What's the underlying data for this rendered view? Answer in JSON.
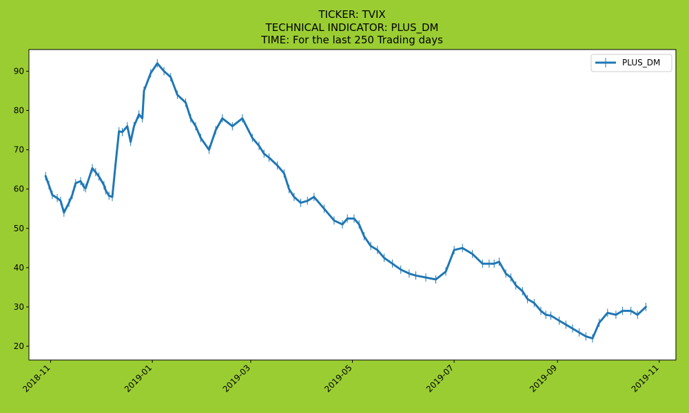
{
  "figure": {
    "background": "#9acd32",
    "plot_background": "#ffffff"
  },
  "chart_data": {
    "type": "line",
    "title_lines": [
      "TICKER:  TVIX",
      "TECHNICAL INDICATOR:  PLUS_DM",
      "TIME: For the last 250 Trading days"
    ],
    "xlabel": "",
    "ylabel": "",
    "x_axis": "date",
    "xlim": [
      "2018-10-19",
      "2019-11-11"
    ],
    "ylim": [
      16.5,
      95.5
    ],
    "x_ticks": [
      "2018-11-01",
      "2019-01-01",
      "2019-03-01",
      "2019-05-01",
      "2019-07-01",
      "2019-09-01",
      "2019-11-01"
    ],
    "x_tick_labels": [
      "2018-11",
      "2019-01",
      "2019-03",
      "2019-05",
      "2019-07",
      "2019-09",
      "2019-11"
    ],
    "y_ticks": [
      20,
      30,
      40,
      50,
      60,
      70,
      80,
      90
    ],
    "y_tick_labels": [
      "20",
      "30",
      "40",
      "50",
      "60",
      "70",
      "80",
      "90"
    ],
    "grid": false,
    "legend_position": "top-right",
    "series": [
      {
        "name": "PLUS_DM",
        "color": "#1f77b4",
        "marker": "vertical-line",
        "x": [
          "2018-10-29",
          "2018-10-31",
          "2018-11-02",
          "2018-11-05",
          "2018-11-07",
          "2018-11-09",
          "2018-11-12",
          "2018-11-14",
          "2018-11-16",
          "2018-11-19",
          "2018-11-21",
          "2018-11-22",
          "2018-11-26",
          "2018-11-28",
          "2018-11-30",
          "2018-12-03",
          "2018-12-04",
          "2018-12-06",
          "2018-12-08",
          "2018-12-10",
          "2018-12-12",
          "2018-12-14",
          "2018-12-17",
          "2018-12-19",
          "2018-12-21",
          "2018-12-24",
          "2018-12-26",
          "2018-12-27",
          "2018-12-31",
          "2019-01-04",
          "2019-01-08",
          "2019-01-12",
          "2019-01-16",
          "2019-01-21",
          "2019-01-24",
          "2019-01-27",
          "2019-01-30",
          "2019-02-04",
          "2019-02-08",
          "2019-02-12",
          "2019-02-18",
          "2019-02-24",
          "2019-03-02",
          "2019-03-06",
          "2019-03-09",
          "2019-03-12",
          "2019-03-17",
          "2019-03-21",
          "2019-03-24",
          "2019-03-27",
          "2019-03-31",
          "2019-04-04",
          "2019-04-08",
          "2019-04-14",
          "2019-04-20",
          "2019-04-25",
          "2019-04-28",
          "2019-05-02",
          "2019-05-05",
          "2019-05-08",
          "2019-05-12",
          "2019-05-16",
          "2019-05-20",
          "2019-05-25",
          "2019-05-30",
          "2019-06-04",
          "2019-06-08",
          "2019-06-14",
          "2019-06-20",
          "2019-06-26",
          "2019-07-01",
          "2019-07-06",
          "2019-07-12",
          "2019-07-18",
          "2019-07-22",
          "2019-07-25",
          "2019-07-28",
          "2019-08-01",
          "2019-08-04",
          "2019-08-07",
          "2019-08-11",
          "2019-08-14",
          "2019-08-18",
          "2019-08-22",
          "2019-08-25",
          "2019-08-28",
          "2019-09-02",
          "2019-09-06",
          "2019-09-10",
          "2019-09-14",
          "2019-09-18",
          "2019-09-22",
          "2019-09-26",
          "2019-10-01",
          "2019-10-06",
          "2019-10-10",
          "2019-10-15",
          "2019-10-19",
          "2019-10-24"
        ],
        "y": [
          63.3,
          61.0,
          58.5,
          57.7,
          57.0,
          54.0,
          56.5,
          58.5,
          61.5,
          62.0,
          60.5,
          60.2,
          65.3,
          64.3,
          63.2,
          61.0,
          59.7,
          58.3,
          58.0,
          66.5,
          74.7,
          74.5,
          76.0,
          72.0,
          76.0,
          79.0,
          78.0,
          85.0,
          89.5,
          92.0,
          90.0,
          88.5,
          84.0,
          82.0,
          78.0,
          76.0,
          73.0,
          70.0,
          75.0,
          78.0,
          76.0,
          78.0,
          73.0,
          71.0,
          69.0,
          68.0,
          66.0,
          64.0,
          60.0,
          58.0,
          56.5,
          57.0,
          58.0,
          55.0,
          52.0,
          51.0,
          52.5,
          52.5,
          51.0,
          48.0,
          45.5,
          44.5,
          42.5,
          41.0,
          39.5,
          38.5,
          38.0,
          37.5,
          37.0,
          39.0,
          44.5,
          45.0,
          43.5,
          41.0,
          41.0,
          41.0,
          41.5,
          38.5,
          37.5,
          35.5,
          34.0,
          32.0,
          31.0,
          29.0,
          28.0,
          27.8,
          26.5,
          25.5,
          24.5,
          23.5,
          22.5,
          22.0,
          26.0,
          28.5,
          28.0,
          29.0,
          29.0,
          28.0,
          30.0
        ]
      }
    ]
  }
}
